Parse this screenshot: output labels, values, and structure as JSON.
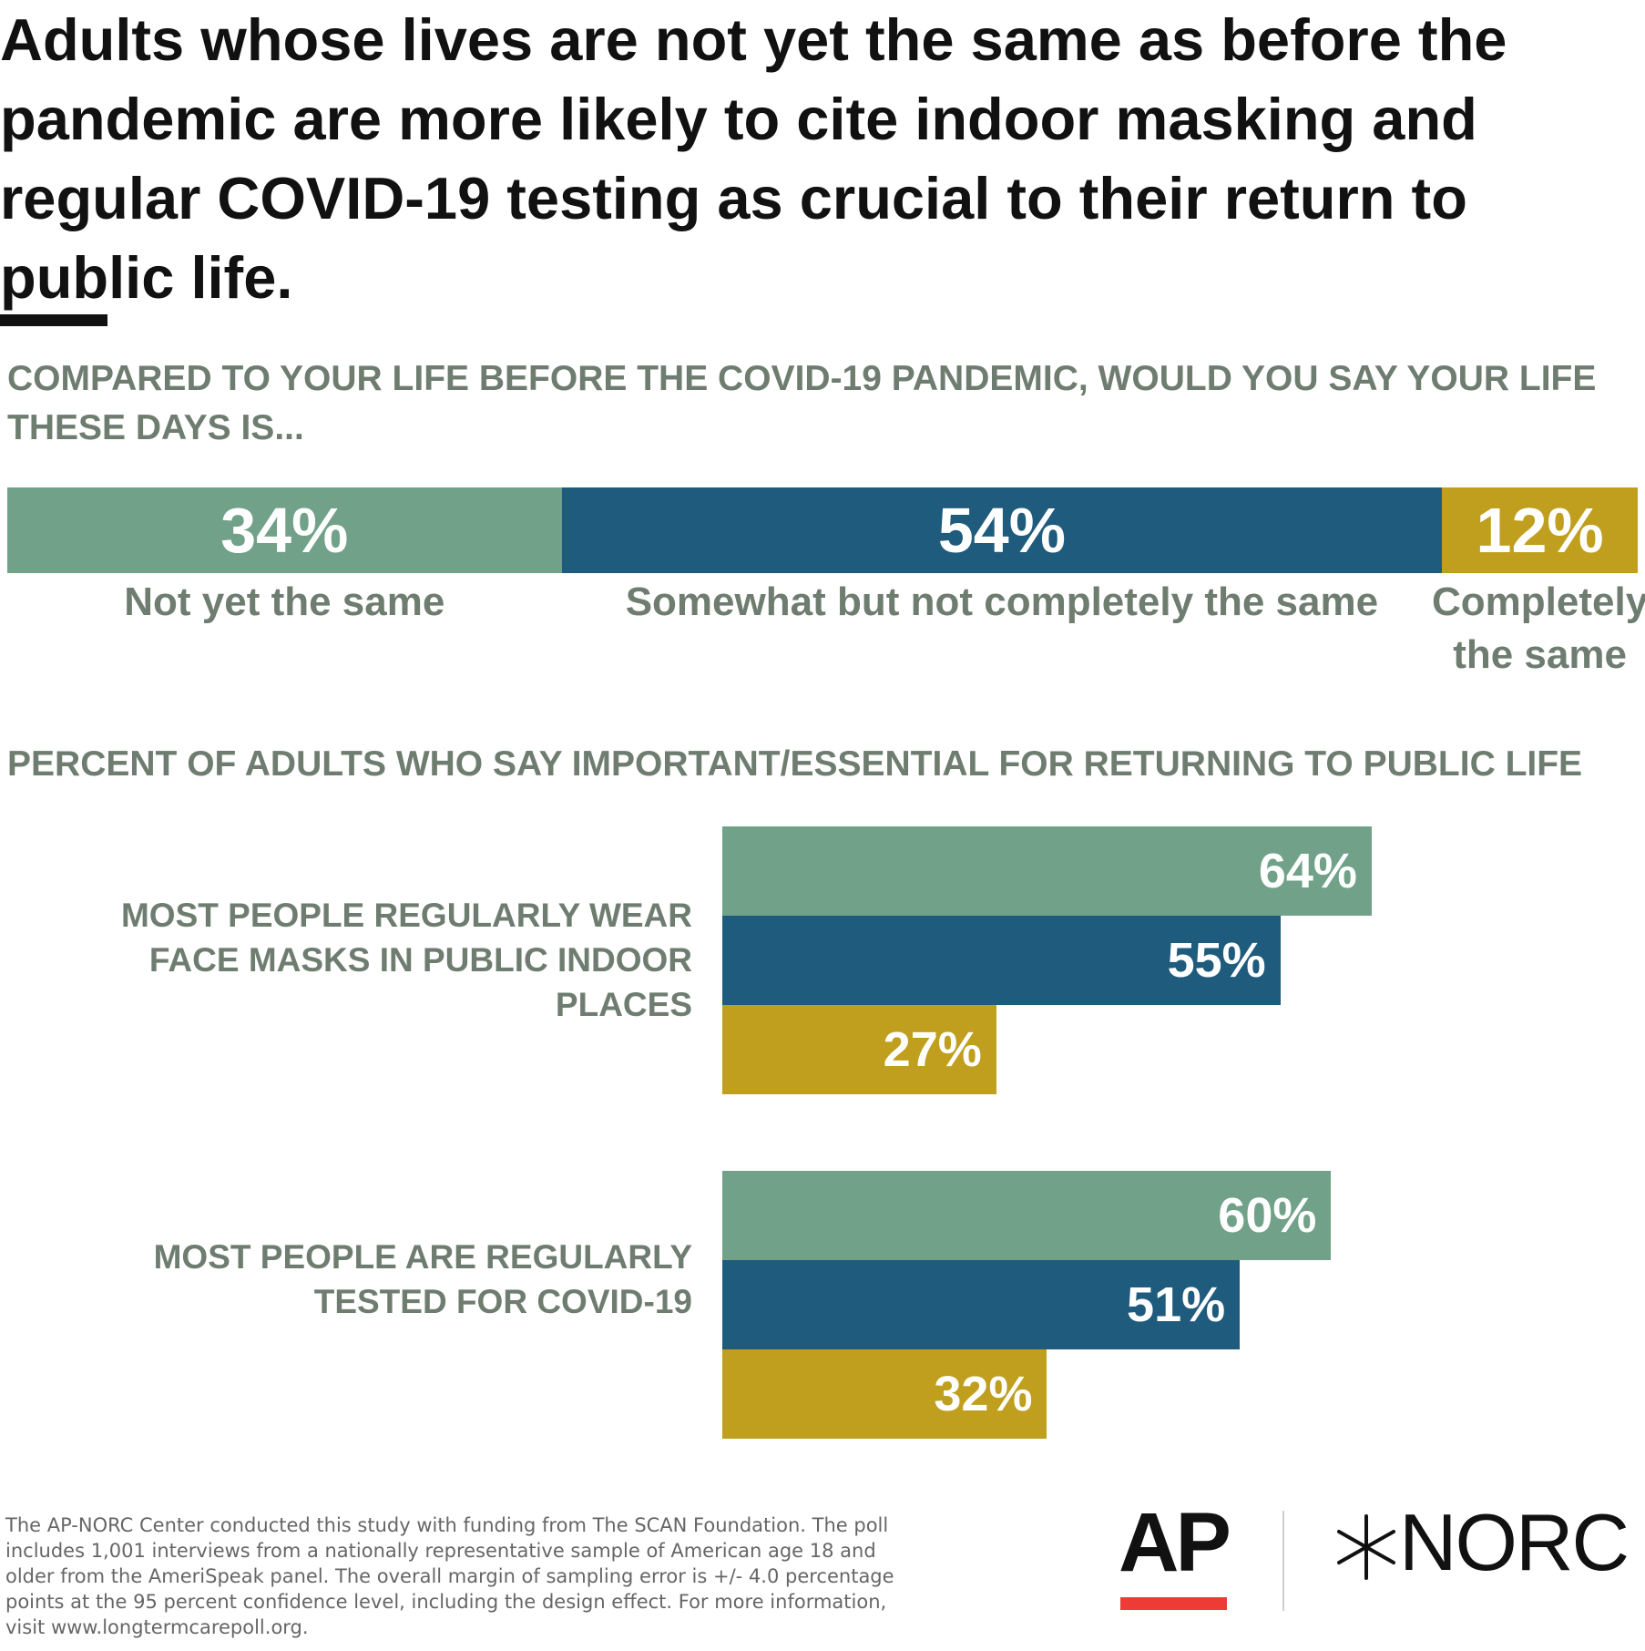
{
  "chart_data": [
    {
      "type": "bar",
      "orientation": "horizontal",
      "stacked": true,
      "title": "COMPARED TO YOUR LIFE BEFORE THE COVID-19 PANDEMIC, WOULD YOU SAY YOUR LIFE THESE DAYS IS...",
      "categories": [
        "Not yet the same",
        "Somewhat but not completely the same",
        "Completely the same"
      ],
      "values": [
        34,
        54,
        12
      ],
      "value_labels": [
        "34%",
        "54%",
        "12%"
      ],
      "colors": [
        "#72a189",
        "#1f5b7c",
        "#c09f1e"
      ],
      "xlim": [
        0,
        100
      ]
    },
    {
      "type": "bar",
      "orientation": "horizontal",
      "title": "PERCENT OF ADULTS WHO SAY IMPORTANT/ESSENTIAL FOR RETURNING TO PUBLIC LIFE",
      "categories": [
        "MOST PEOPLE REGULARLY WEAR FACE MASKS IN PUBLIC INDOOR PLACES",
        "MOST PEOPLE ARE REGULARLY TESTED FOR COVID-19"
      ],
      "series": [
        {
          "values": [
            64,
            60
          ],
          "labels": [
            "64%",
            "60%"
          ],
          "color": "#72a189"
        },
        {
          "values": [
            55,
            51
          ],
          "labels": [
            "55%",
            "51%"
          ],
          "color": "#1f5b7c"
        },
        {
          "values": [
            27,
            32
          ],
          "labels": [
            "27%",
            "32%"
          ],
          "color": "#c09f1e"
        }
      ],
      "xlim": [
        0,
        100
      ]
    }
  ],
  "headline": "Adults whose lives are not yet the same as before the pandemic are more likely to cite indoor masking and regular COVID-19 testing as crucial to their return to public life.",
  "footnote": "The AP-NORC Center conducted this study with funding from The SCAN Foundation. The poll includes 1,001 interviews from a nationally representative sample of American age 18 and older from the AmeriSpeak panel. The overall margin of sampling error is +/- 4.0 percentage points at the 95 percent confidence level, including the design effect. For more information, visit www.longtermcarepoll.org.",
  "logos": {
    "ap": "AP",
    "norc": "NORC"
  },
  "icons": {
    "norc_mark": "starburst-icon"
  }
}
